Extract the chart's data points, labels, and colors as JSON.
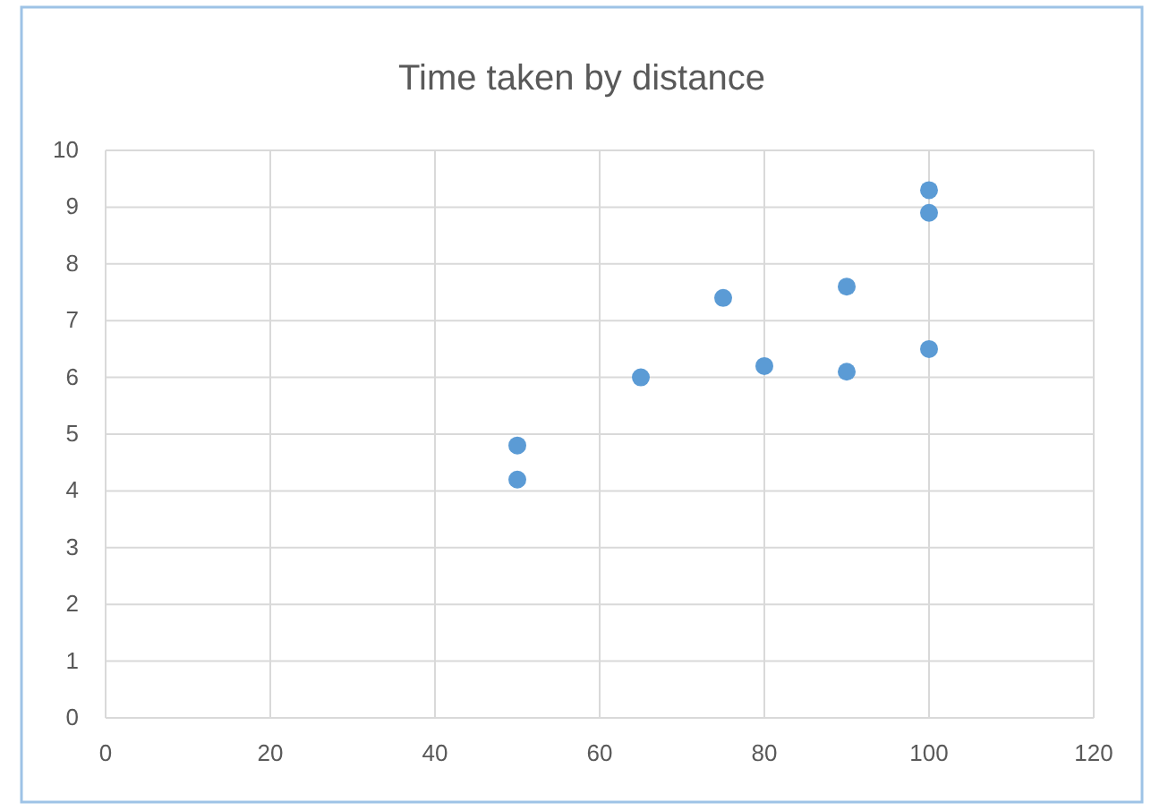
{
  "chart_data": {
    "type": "scatter",
    "title": "Time taken by distance",
    "x": [
      50,
      50,
      65,
      75,
      80,
      90,
      90,
      100,
      100,
      100
    ],
    "values": [
      4.8,
      4.2,
      6.0,
      7.4,
      6.2,
      7.6,
      6.1,
      9.3,
      8.9,
      6.5
    ],
    "color": "#5b9bd5",
    "marker": "circle",
    "grid": true,
    "xlim": [
      0,
      120
    ],
    "xticks": [
      0,
      20,
      40,
      60,
      80,
      100,
      120
    ],
    "ylim": [
      0,
      10
    ],
    "yticks": [
      0,
      1,
      2,
      3,
      4,
      5,
      6,
      7,
      8,
      9,
      10
    ]
  }
}
